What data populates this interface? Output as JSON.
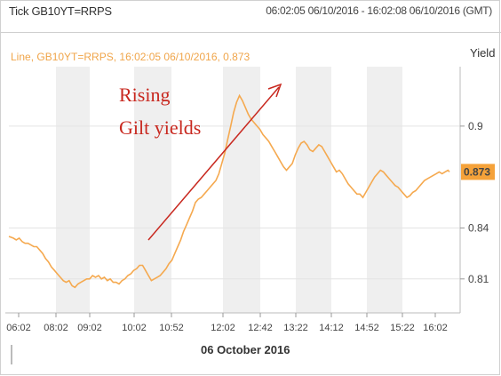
{
  "header": {
    "title": "Tick GB10YT=RRPS",
    "range": "06:02:05 06/10/2016 - 16:02:08 06/10/2016 (GMT)"
  },
  "chart_data": {
    "type": "line",
    "legend": "Line, GB10YT=RRPS, 16:02:05 06/10/2016, 0.873",
    "ylabel": "Yield",
    "xlabel": "06 October 2016",
    "last_value": "0.873",
    "ylim": [
      0.79,
      0.935
    ],
    "xlim": [
      0,
      600
    ],
    "x_tick_labels": [
      "06:02",
      "08:02",
      "09:02",
      "10:02",
      "10:52",
      "12:02",
      "12:42",
      "13:22",
      "14:12",
      "14:52",
      "15:22",
      "16:02"
    ],
    "y_ticks": [
      0.81,
      0.84,
      0.9
    ],
    "y_tick_labels": [
      "0.81",
      "0.84",
      "0.9"
    ],
    "annotation": [
      "Rising",
      "Gilt yields"
    ],
    "colors": {
      "line": "#f5a94f",
      "last_value_bg": "#f5a23a",
      "annotation": "#c8281f",
      "band": "#efefef"
    },
    "series": [
      {
        "minutes": [
          0,
          6,
          10,
          14,
          18,
          22,
          26,
          30,
          34,
          38,
          42,
          46,
          50,
          54,
          58,
          62,
          66,
          70,
          74,
          78,
          82,
          86,
          90,
          94,
          98,
          102,
          106,
          110,
          114,
          118,
          122,
          126,
          130,
          134,
          138,
          142,
          146,
          150,
          154,
          158,
          162,
          166,
          170,
          174,
          178,
          182,
          186,
          190,
          194,
          198,
          202,
          206,
          210,
          214,
          218,
          222,
          226,
          230,
          234,
          238,
          242,
          246,
          250,
          254,
          258,
          262,
          266,
          270,
          274,
          278,
          282,
          286,
          290,
          294,
          298,
          302,
          306,
          310,
          314,
          318,
          322,
          326,
          330,
          334,
          338,
          342,
          346,
          350,
          354,
          358,
          362,
          366,
          370,
          374,
          378,
          382,
          386,
          390,
          394,
          398,
          402,
          406,
          410,
          414,
          418,
          422,
          426,
          430,
          434,
          438,
          442,
          446,
          450,
          454,
          458,
          462,
          466,
          470,
          474,
          478,
          482,
          486,
          490,
          494,
          498,
          502,
          506,
          510,
          514,
          518,
          522,
          526,
          530,
          534,
          538,
          542,
          546,
          550,
          554,
          558,
          562,
          566,
          570,
          574,
          578,
          582,
          586,
          590,
          594,
          598,
          600
        ],
        "yield": [
          0.835,
          0.834,
          0.833,
          0.834,
          0.832,
          0.831,
          0.831,
          0.83,
          0.829,
          0.829,
          0.827,
          0.825,
          0.822,
          0.82,
          0.817,
          0.815,
          0.813,
          0.811,
          0.809,
          0.808,
          0.809,
          0.806,
          0.805,
          0.807,
          0.808,
          0.809,
          0.81,
          0.81,
          0.812,
          0.811,
          0.812,
          0.81,
          0.811,
          0.809,
          0.81,
          0.808,
          0.808,
          0.807,
          0.809,
          0.81,
          0.812,
          0.813,
          0.815,
          0.816,
          0.818,
          0.818,
          0.815,
          0.812,
          0.809,
          0.81,
          0.811,
          0.812,
          0.814,
          0.816,
          0.819,
          0.821,
          0.825,
          0.829,
          0.833,
          0.838,
          0.842,
          0.846,
          0.85,
          0.855,
          0.857,
          0.858,
          0.86,
          0.862,
          0.864,
          0.866,
          0.868,
          0.872,
          0.878,
          0.884,
          0.892,
          0.9,
          0.908,
          0.914,
          0.918,
          0.915,
          0.911,
          0.907,
          0.904,
          0.902,
          0.9,
          0.898,
          0.895,
          0.893,
          0.891,
          0.888,
          0.885,
          0.882,
          0.879,
          0.876,
          0.874,
          0.876,
          0.878,
          0.883,
          0.887,
          0.89,
          0.891,
          0.889,
          0.886,
          0.885,
          0.887,
          0.889,
          0.888,
          0.885,
          0.882,
          0.879,
          0.876,
          0.873,
          0.874,
          0.872,
          0.869,
          0.866,
          0.864,
          0.862,
          0.86,
          0.86,
          0.858,
          0.861,
          0.864,
          0.867,
          0.87,
          0.872,
          0.874,
          0.873,
          0.871,
          0.869,
          0.867,
          0.865,
          0.864,
          0.862,
          0.86,
          0.858,
          0.859,
          0.861,
          0.862,
          0.864,
          0.866,
          0.868,
          0.869,
          0.87,
          0.871,
          0.872,
          0.873,
          0.872,
          0.873,
          0.874,
          0.873
        ]
      }
    ]
  }
}
